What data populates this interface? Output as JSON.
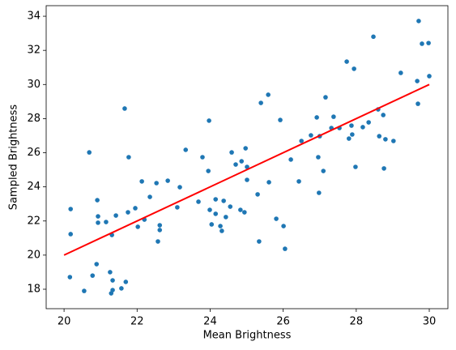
{
  "chart_data": {
    "type": "scatter",
    "x_label": "Mean Brightness",
    "y_label": "Sampled Brightness",
    "xlim": [
      19.51,
      30.51
    ],
    "ylim": [
      16.86,
      34.62
    ],
    "xticks": [
      20,
      22,
      24,
      26,
      28,
      30
    ],
    "yticks": [
      18,
      20,
      22,
      24,
      26,
      28,
      30,
      32,
      34
    ],
    "series": [
      {
        "type": "scatter",
        "color": "#1f77b4",
        "x": [
          20.16,
          20.18,
          20.18,
          20.55,
          20.69,
          20.78,
          20.89,
          20.91,
          20.93,
          20.93,
          21.15,
          21.26,
          21.29,
          21.33,
          21.33,
          21.31,
          21.42,
          21.57,
          21.66,
          21.69,
          21.75,
          21.77,
          21.95,
          22.02,
          22.13,
          22.2,
          22.35,
          22.53,
          22.57,
          22.62,
          22.62,
          22.84,
          23.1,
          23.17,
          23.33,
          23.68,
          23.79,
          23.97,
          23.95,
          23.99,
          24.04,
          24.15,
          24.15,
          24.28,
          24.32,
          24.37,
          24.43,
          24.55,
          24.59,
          24.7,
          24.83,
          24.86,
          24.94,
          24.97,
          25.01,
          25.01,
          25.3,
          25.34,
          25.39,
          25.59,
          25.61,
          25.81,
          25.92,
          26.01,
          26.05,
          26.21,
          26.43,
          26.5,
          26.76,
          26.92,
          26.96,
          26.98,
          27.0,
          27.1,
          27.16,
          27.32,
          27.38,
          27.54,
          27.74,
          27.8,
          27.87,
          27.89,
          27.94,
          27.98,
          28.18,
          28.34,
          28.47,
          28.6,
          28.63,
          28.74,
          28.76,
          28.8,
          29.02,
          29.22,
          29.67,
          29.69,
          29.71,
          29.8,
          29.98,
          30.0
        ],
        "values": [
          18.71,
          22.7,
          21.23,
          17.9,
          26.02,
          18.8,
          19.47,
          23.22,
          22.27,
          21.9,
          21.94,
          19.0,
          17.76,
          17.95,
          18.52,
          21.18,
          22.32,
          18.05,
          28.59,
          18.43,
          22.51,
          25.74,
          22.75,
          21.66,
          24.32,
          22.08,
          23.41,
          24.22,
          20.8,
          21.75,
          21.47,
          24.36,
          22.8,
          23.98,
          26.17,
          23.13,
          25.74,
          27.88,
          24.93,
          22.65,
          21.8,
          22.42,
          23.27,
          21.7,
          21.42,
          23.18,
          22.23,
          22.84,
          26.02,
          25.31,
          22.65,
          25.5,
          22.51,
          26.26,
          25.17,
          24.41,
          23.56,
          20.8,
          28.92,
          29.4,
          24.27,
          22.13,
          27.92,
          21.7,
          20.37,
          25.6,
          24.32,
          26.69,
          27.02,
          28.07,
          25.74,
          23.65,
          26.97,
          24.93,
          29.25,
          27.45,
          28.11,
          27.45,
          31.34,
          26.83,
          27.59,
          27.07,
          30.92,
          25.17,
          27.5,
          27.78,
          32.8,
          28.54,
          26.97,
          28.21,
          25.08,
          26.79,
          26.69,
          30.68,
          30.2,
          28.87,
          33.72,
          32.39,
          32.43,
          30.49
        ]
      },
      {
        "type": "line",
        "color": "#ff0000",
        "x": [
          20,
          30
        ],
        "values": [
          20,
          30
        ]
      }
    ]
  }
}
